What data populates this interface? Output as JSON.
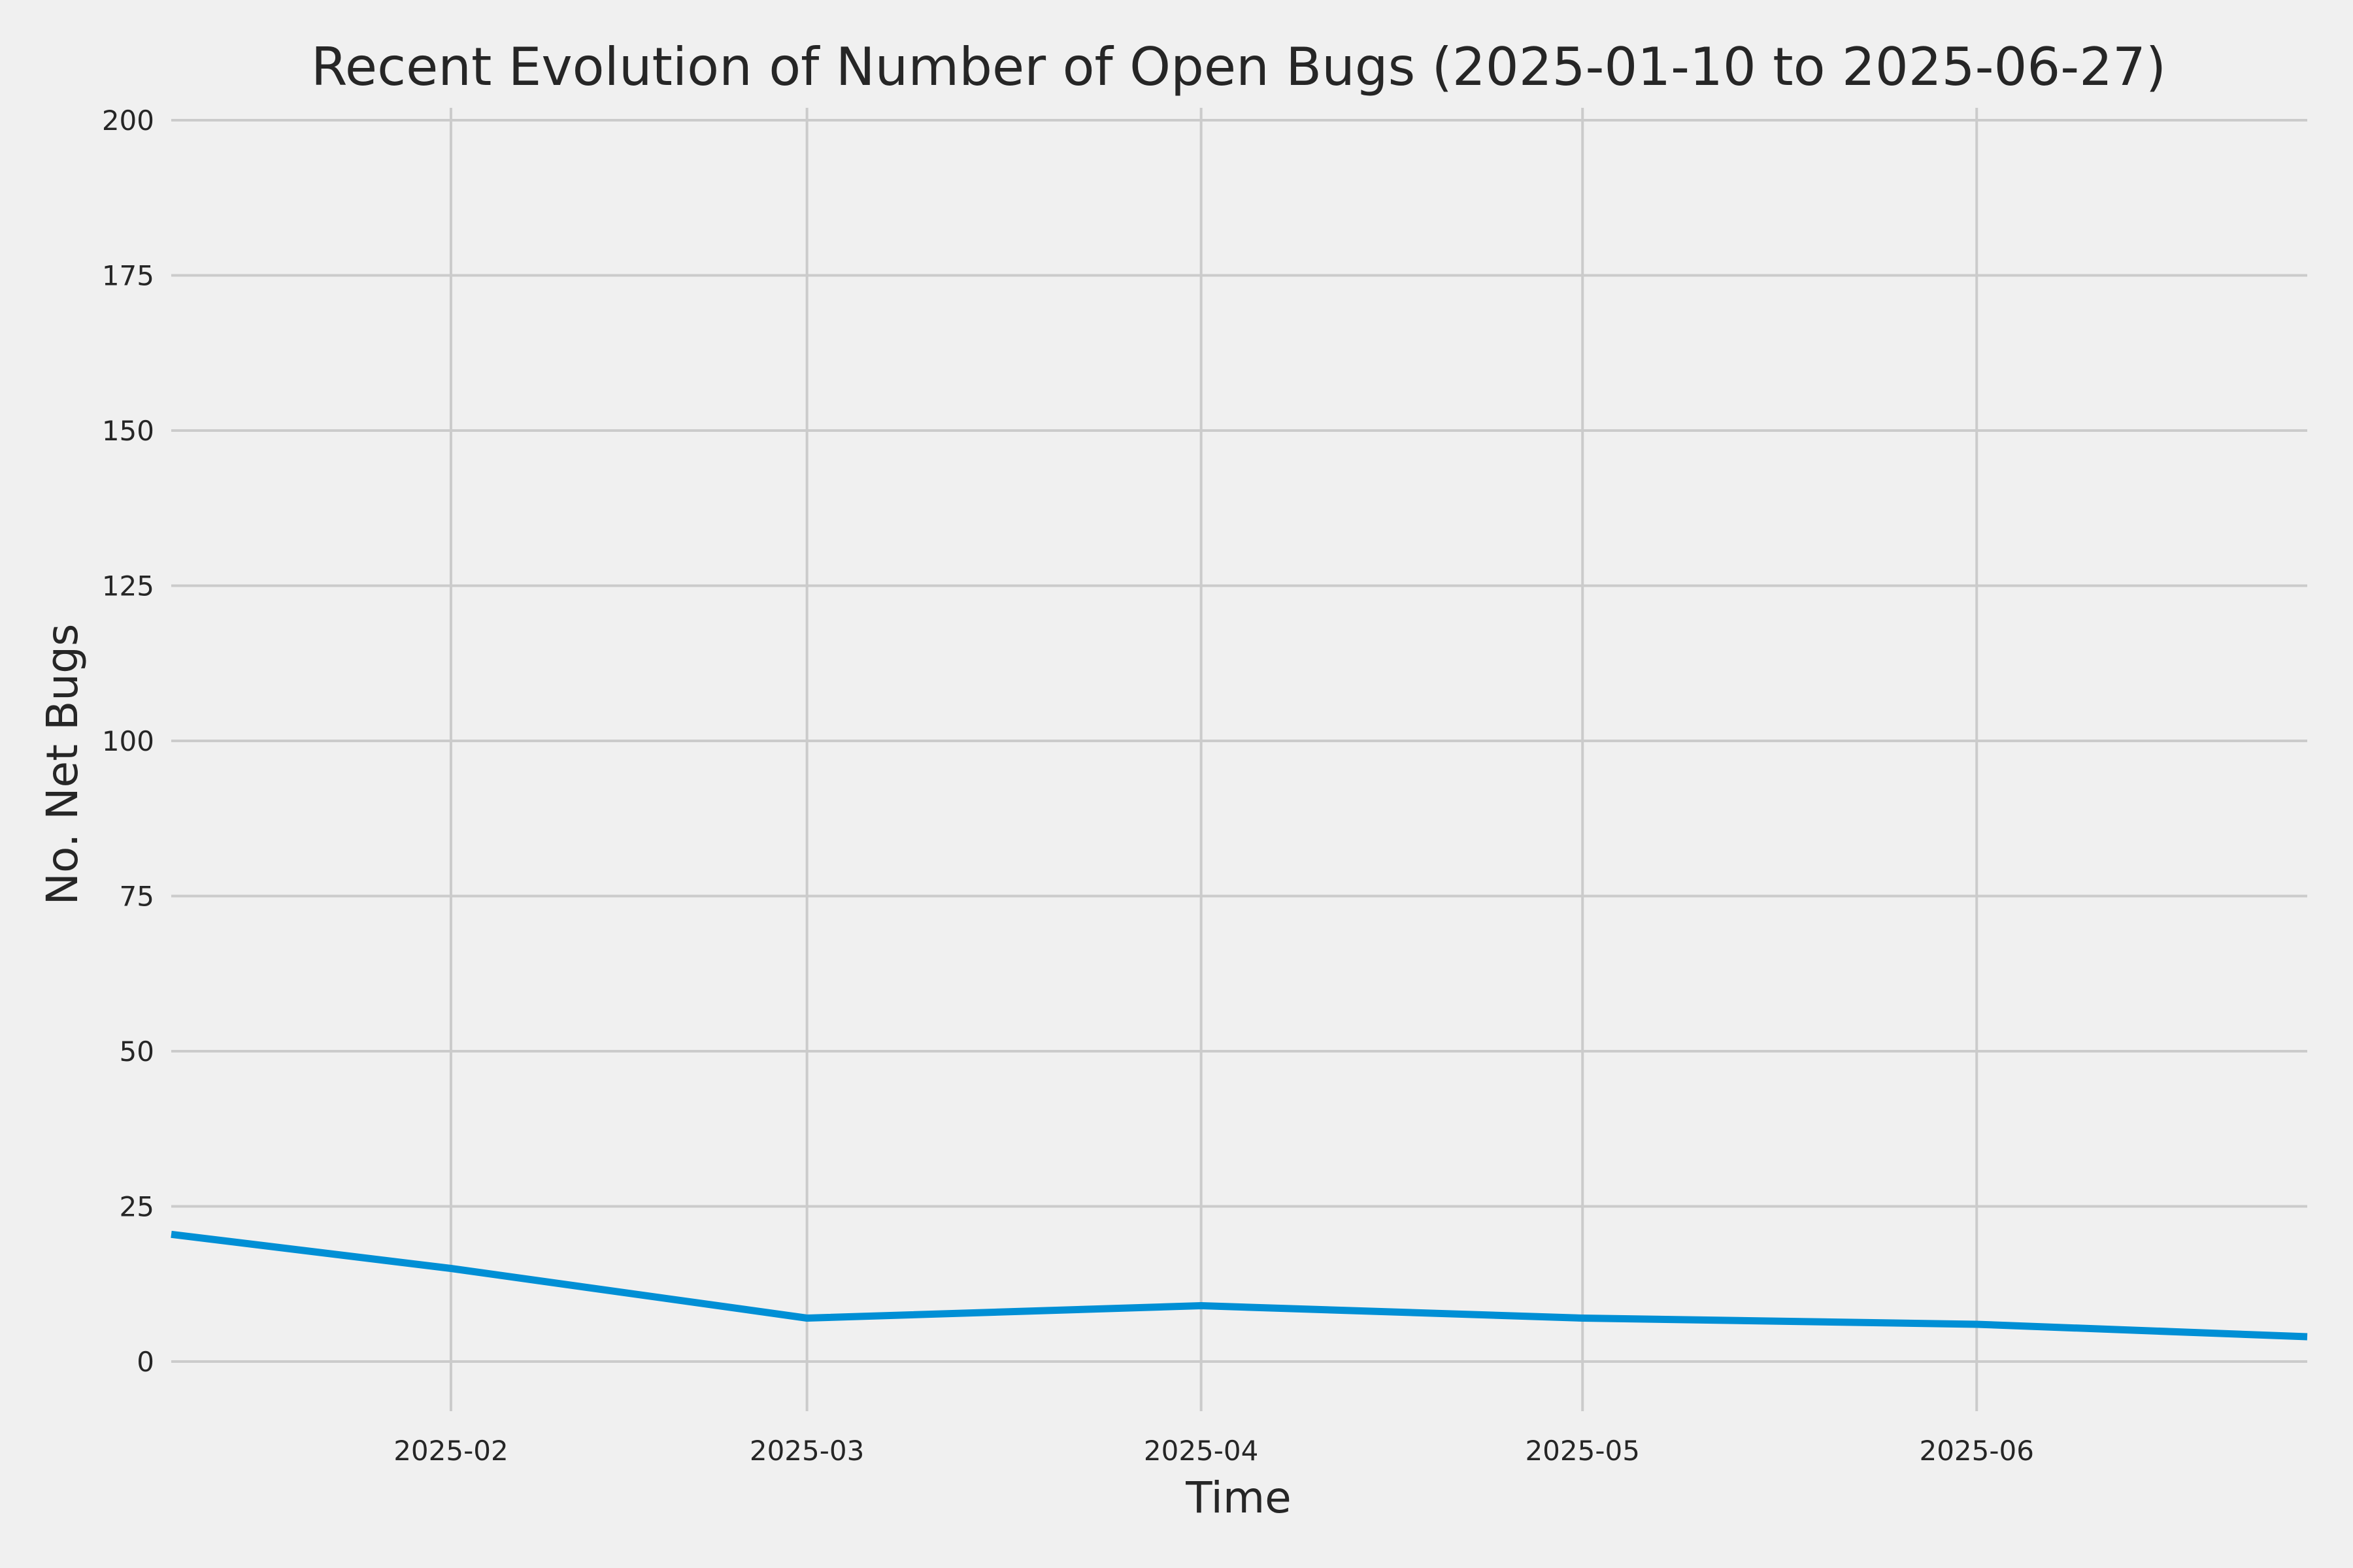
{
  "chart_data": {
    "type": "line",
    "title": "Recent Evolution of Number of Open Bugs (2025-01-10 to 2025-06-27)",
    "xlabel": "Time",
    "ylabel": "No. Net Bugs",
    "xlim": [
      "2025-01-10",
      "2025-06-27"
    ],
    "ylim": [
      -8,
      202
    ],
    "yticks": [
      0,
      25,
      50,
      75,
      100,
      125,
      150,
      175,
      200
    ],
    "xticks": [
      {
        "date": "2025-02-01",
        "label": "2025-02"
      },
      {
        "date": "2025-03-01",
        "label": "2025-03"
      },
      {
        "date": "2025-04-01",
        "label": "2025-04"
      },
      {
        "date": "2025-05-01",
        "label": "2025-05"
      },
      {
        "date": "2025-06-01",
        "label": "2025-06"
      }
    ],
    "grid": true,
    "series": [
      {
        "color": "#008fd5",
        "x": [
          "2025-01-10",
          "2025-02-01",
          "2025-03-01",
          "2025-04-01",
          "2025-05-01",
          "2025-06-01",
          "2025-06-27"
        ],
        "y": [
          20.5,
          15,
          7,
          9,
          7,
          6,
          4
        ]
      }
    ]
  }
}
